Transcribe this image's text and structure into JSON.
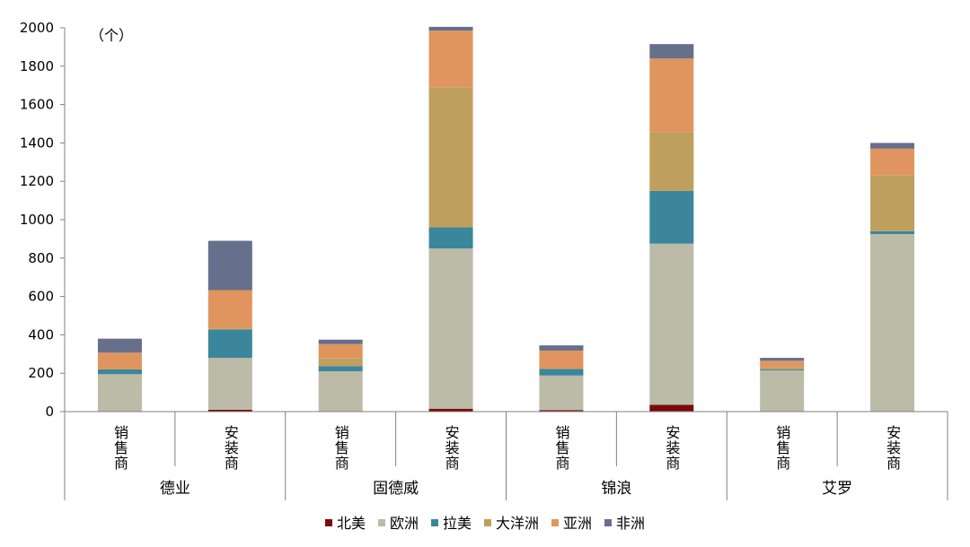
{
  "chart_data": {
    "type": "bar",
    "stacked": true,
    "unit_label": "（个）",
    "ylim": [
      0,
      2000
    ],
    "yticks": [
      "0",
      "200",
      "400",
      "600",
      "800",
      "1000",
      "1200",
      "1400",
      "1600",
      "1800",
      "2000"
    ],
    "groups": [
      {
        "name": "德业",
        "categories": [
          "销售商",
          "安装商"
        ]
      },
      {
        "name": "固德威",
        "categories": [
          "销售商",
          "安装商"
        ]
      },
      {
        "name": "锦浪",
        "categories": [
          "销售商",
          "安装商"
        ]
      },
      {
        "name": "艾罗",
        "categories": [
          "销售商",
          "安装商"
        ]
      }
    ],
    "series": [
      {
        "name": "北美",
        "color": "#7a0a0a",
        "values": [
          0,
          10,
          0,
          15,
          8,
          35,
          0,
          0
        ]
      },
      {
        "name": "欧洲",
        "color": "#bcbba8",
        "values": [
          195,
          270,
          210,
          835,
          180,
          840,
          215,
          925
        ]
      },
      {
        "name": "拉美",
        "color": "#3b869b",
        "values": [
          25,
          148,
          27,
          110,
          35,
          275,
          5,
          15
        ]
      },
      {
        "name": "大洋洲",
        "color": "#bf9f5e",
        "values": [
          0,
          5,
          40,
          730,
          0,
          305,
          10,
          290
        ]
      },
      {
        "name": "亚洲",
        "color": "#e0955e",
        "values": [
          87,
          200,
          75,
          295,
          95,
          385,
          35,
          140
        ]
      },
      {
        "name": "非洲",
        "color": "#666f8b",
        "values": [
          73,
          257,
          23,
          20,
          27,
          75,
          15,
          30
        ]
      }
    ],
    "legend_position": "bottom",
    "grid": false
  }
}
